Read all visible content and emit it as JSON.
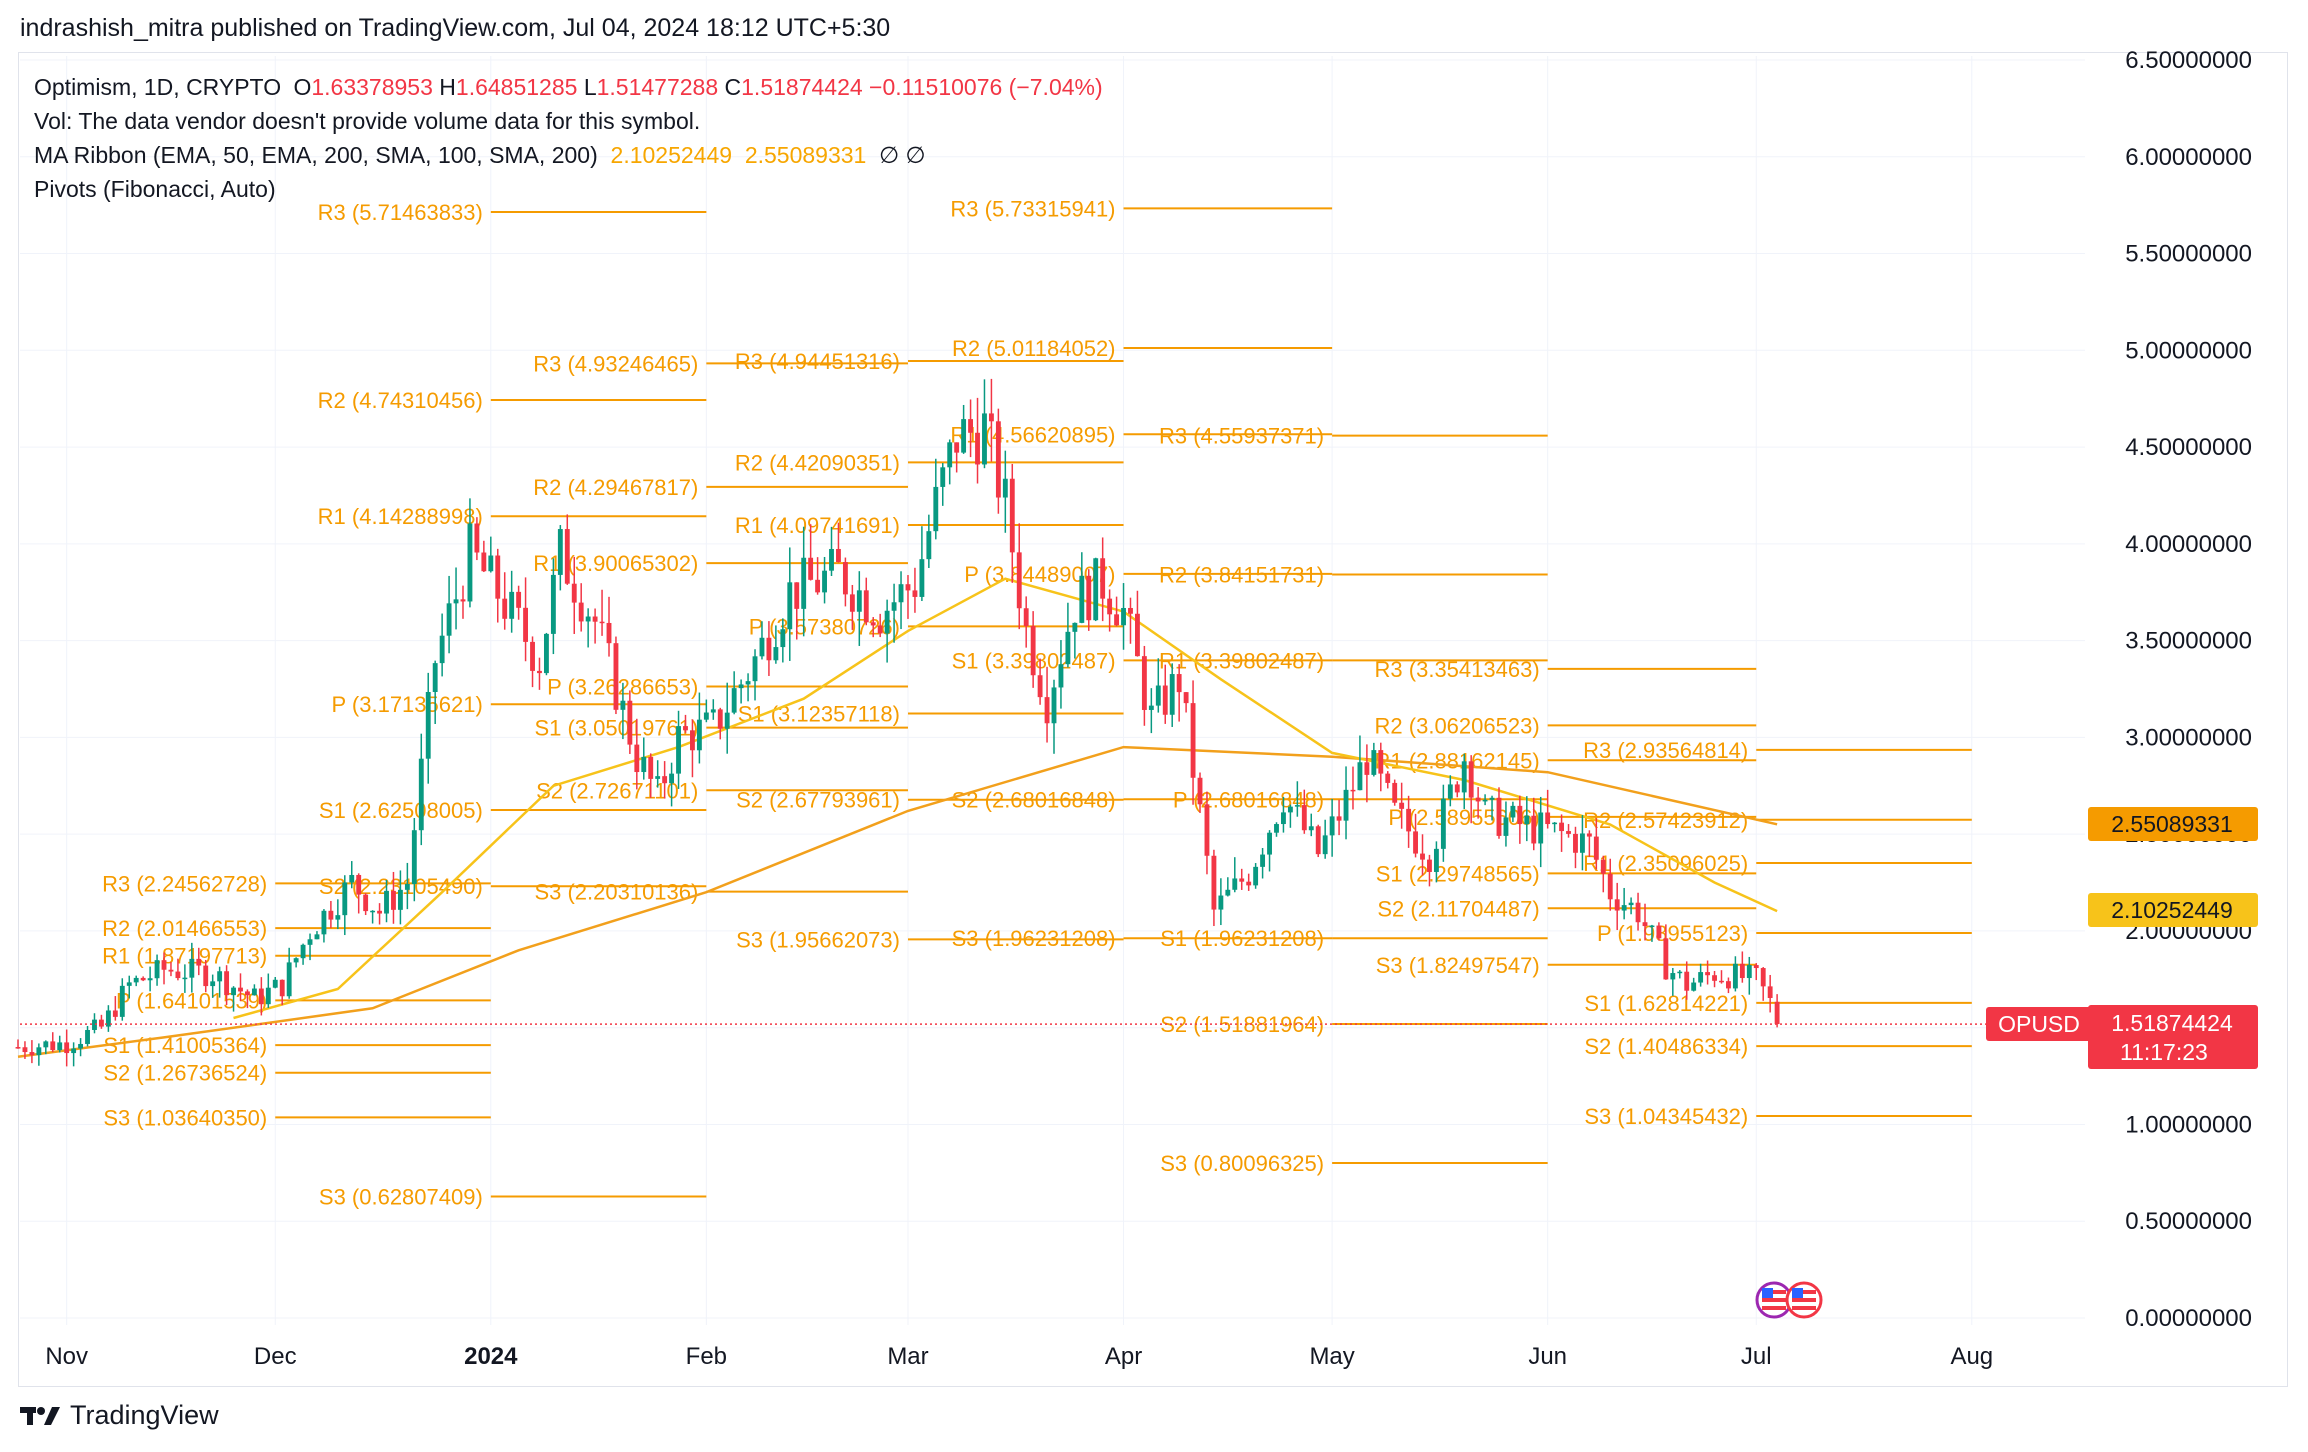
{
  "header": {
    "publisher": "indrashish_mitra published on TradingView.com, Jul 04, 2024 18:12 UTC+5:30"
  },
  "legend": {
    "symbol": "Optimism, 1D, CRYPTO",
    "o_label": "O",
    "o_value": "1.63378953",
    "h_label": "H",
    "h_value": "1.64851285",
    "l_label": "L",
    "l_value": "1.51477288",
    "c_label": "C",
    "c_value": "1.51874424",
    "change": "−0.11510076 (−7.04%)",
    "vol_text": "Vol: The data vendor doesn't provide volume data for this symbol.",
    "ma_title": "MA Ribbon (EMA, 50, EMA, 200, SMA, 100, SMA, 200)",
    "ma_value_1": "2.10252449",
    "ma_value_2": "2.55089331",
    "ma_na": "∅  ∅",
    "pivots_title": "Pivots (Fibonacci, Auto)"
  },
  "footer": {
    "brand": "TradingView",
    "logo_icon": "tradingview-logo-icon"
  },
  "badges": {
    "ma_upper": "2.55089331",
    "ma_lower": "2.10252449",
    "symbol_tag": "OPUSD",
    "price": "1.51874424",
    "countdown": "11:17:23"
  },
  "colors": {
    "up": "#089981",
    "down": "#f23645",
    "pivot": "#f59b00",
    "ma_ema50": "#f7c31a",
    "ma_ema200": "#f2a01c",
    "grid": "#f0f3fa"
  },
  "chart_data": {
    "type": "candlestick",
    "symbol": "OPUSD",
    "ylim": [
      0,
      6.5
    ],
    "y_ticks": [
      "0.00000000",
      "0.50000000",
      "1.00000000",
      "1.50000000",
      "2.00000000",
      "2.50000000",
      "3.00000000",
      "3.50000000",
      "4.00000000",
      "4.50000000",
      "5.00000000",
      "5.50000000",
      "6.00000000",
      "6.50000000"
    ],
    "x_ticks": [
      "Nov",
      "Dec",
      "2024",
      "Feb",
      "Mar",
      "Apr",
      "May",
      "Jun",
      "Jul",
      "Aug"
    ],
    "x_tick_dates": [
      "2023-11-01",
      "2023-12-01",
      "2024-01-01",
      "2024-02-01",
      "2024-03-01",
      "2024-04-01",
      "2024-05-01",
      "2024-06-01",
      "2024-07-01",
      "2024-08-01"
    ],
    "x_range": [
      "2023-10-25",
      "2024-08-18"
    ],
    "last_price": 1.51874424,
    "ohlc_anchors": [
      {
        "date": "2023-10-25",
        "close": 1.4
      },
      {
        "date": "2023-11-01",
        "close": 1.42
      },
      {
        "date": "2023-11-06",
        "close": 1.5
      },
      {
        "date": "2023-11-10",
        "close": 1.72
      },
      {
        "date": "2023-11-15",
        "close": 1.8
      },
      {
        "date": "2023-11-22",
        "close": 1.78
      },
      {
        "date": "2023-11-28",
        "close": 1.65
      },
      {
        "date": "2023-12-02",
        "close": 1.72
      },
      {
        "date": "2023-12-06",
        "close": 2.0
      },
      {
        "date": "2023-12-12",
        "close": 2.25
      },
      {
        "date": "2023-12-16",
        "close": 2.1
      },
      {
        "date": "2023-12-20",
        "close": 2.25
      },
      {
        "date": "2023-12-24",
        "close": 3.4
      },
      {
        "date": "2023-12-29",
        "close": 3.95
      },
      {
        "date": "2024-01-02",
        "close": 3.75
      },
      {
        "date": "2024-01-08",
        "close": 3.4
      },
      {
        "date": "2024-01-11",
        "close": 3.95
      },
      {
        "date": "2024-01-16",
        "close": 3.6
      },
      {
        "date": "2024-01-22",
        "close": 2.9
      },
      {
        "date": "2024-01-25",
        "close": 2.7
      },
      {
        "date": "2024-01-28",
        "close": 3.0
      },
      {
        "date": "2024-02-02",
        "close": 3.05
      },
      {
        "date": "2024-02-08",
        "close": 3.4
      },
      {
        "date": "2024-02-13",
        "close": 3.75
      },
      {
        "date": "2024-02-20",
        "close": 3.85
      },
      {
        "date": "2024-02-26",
        "close": 3.65
      },
      {
        "date": "2024-03-02",
        "close": 3.8
      },
      {
        "date": "2024-03-05",
        "close": 4.2
      },
      {
        "date": "2024-03-08",
        "close": 4.55
      },
      {
        "date": "2024-03-12",
        "close": 4.6
      },
      {
        "date": "2024-03-15",
        "close": 4.2
      },
      {
        "date": "2024-03-18",
        "close": 3.55
      },
      {
        "date": "2024-03-21",
        "close": 3.2
      },
      {
        "date": "2024-03-25",
        "close": 3.7
      },
      {
        "date": "2024-03-29",
        "close": 3.8
      },
      {
        "date": "2024-04-01",
        "close": 3.65
      },
      {
        "date": "2024-04-05",
        "close": 3.1
      },
      {
        "date": "2024-04-09",
        "close": 3.3
      },
      {
        "date": "2024-04-12",
        "close": 2.6
      },
      {
        "date": "2024-04-14",
        "close": 2.1
      },
      {
        "date": "2024-04-19",
        "close": 2.3
      },
      {
        "date": "2024-04-24",
        "close": 2.7
      },
      {
        "date": "2024-04-29",
        "close": 2.4
      },
      {
        "date": "2024-05-02",
        "close": 2.6
      },
      {
        "date": "2024-05-06",
        "close": 2.9
      },
      {
        "date": "2024-05-10",
        "close": 2.6
      },
      {
        "date": "2024-05-15",
        "close": 2.4
      },
      {
        "date": "2024-05-20",
        "close": 2.9
      },
      {
        "date": "2024-05-23",
        "close": 2.6
      },
      {
        "date": "2024-05-28",
        "close": 2.55
      },
      {
        "date": "2024-06-03",
        "close": 2.5
      },
      {
        "date": "2024-06-07",
        "close": 2.45
      },
      {
        "date": "2024-06-10",
        "close": 2.2
      },
      {
        "date": "2024-06-14",
        "close": 2.1
      },
      {
        "date": "2024-06-18",
        "close": 1.82
      },
      {
        "date": "2024-06-21",
        "close": 1.72
      },
      {
        "date": "2024-06-25",
        "close": 1.78
      },
      {
        "date": "2024-07-01",
        "close": 1.75
      },
      {
        "date": "2024-07-03",
        "close": 1.63
      },
      {
        "date": "2024-07-04",
        "close": 1.52
      }
    ],
    "ma_ema50": [
      {
        "date": "2023-11-25",
        "value": 1.55
      },
      {
        "date": "2023-12-10",
        "value": 1.7
      },
      {
        "date": "2023-12-25",
        "value": 2.2
      },
      {
        "date": "2024-01-10",
        "value": 2.75
      },
      {
        "date": "2024-01-28",
        "value": 2.95
      },
      {
        "date": "2024-02-15",
        "value": 3.2
      },
      {
        "date": "2024-03-01",
        "value": 3.55
      },
      {
        "date": "2024-03-15",
        "value": 3.82
      },
      {
        "date": "2024-04-01",
        "value": 3.65
      },
      {
        "date": "2024-04-15",
        "value": 3.3
      },
      {
        "date": "2024-05-01",
        "value": 2.92
      },
      {
        "date": "2024-05-20",
        "value": 2.78
      },
      {
        "date": "2024-06-10",
        "value": 2.55
      },
      {
        "date": "2024-06-25",
        "value": 2.25
      },
      {
        "date": "2024-07-04",
        "value": 2.10252449
      }
    ],
    "ma_ema200": [
      {
        "date": "2023-10-25",
        "value": 1.35
      },
      {
        "date": "2023-11-15",
        "value": 1.45
      },
      {
        "date": "2023-12-15",
        "value": 1.6
      },
      {
        "date": "2024-01-05",
        "value": 1.9
      },
      {
        "date": "2024-02-01",
        "value": 2.2
      },
      {
        "date": "2024-03-01",
        "value": 2.62
      },
      {
        "date": "2024-04-01",
        "value": 2.95
      },
      {
        "date": "2024-05-01",
        "value": 2.9
      },
      {
        "date": "2024-06-01",
        "value": 2.82
      },
      {
        "date": "2024-07-04",
        "value": 2.55089331
      }
    ],
    "pivots": [
      {
        "label": "R3 (2.24562728)",
        "value": 2.24562728,
        "from": "2023-12-01",
        "to": "2024-01-01"
      },
      {
        "label": "R2 (2.01466553)",
        "value": 2.01466553,
        "from": "2023-12-01",
        "to": "2024-01-01"
      },
      {
        "label": "R1 (1.87197713)",
        "value": 1.87197713,
        "from": "2023-12-01",
        "to": "2024-01-01"
      },
      {
        "label": "P (1.64101539)",
        "value": 1.64101539,
        "from": "2023-12-01",
        "to": "2024-01-01"
      },
      {
        "label": "S1 (1.41005364)",
        "value": 1.41005364,
        "from": "2023-12-01",
        "to": "2024-01-01"
      },
      {
        "label": "S2 (1.26736524)",
        "value": 1.26736524,
        "from": "2023-12-01",
        "to": "2024-01-01"
      },
      {
        "label": "S3 (1.03640350)",
        "value": 1.0364035,
        "from": "2023-12-01",
        "to": "2024-01-01"
      },
      {
        "label": "R3 (5.71463833)",
        "value": 5.71463833,
        "from": "2024-01-01",
        "to": "2024-02-01"
      },
      {
        "label": "R2 (4.74310456)",
        "value": 4.74310456,
        "from": "2024-01-01",
        "to": "2024-02-01"
      },
      {
        "label": "R1 (4.14288998)",
        "value": 4.14288998,
        "from": "2024-01-01",
        "to": "2024-02-01"
      },
      {
        "label": "P (3.17135621)",
        "value": 3.17135621,
        "from": "2024-01-01",
        "to": "2024-02-01"
      },
      {
        "label": "S1 (2.62508005)",
        "value": 2.62508005,
        "from": "2024-01-01",
        "to": "2024-02-01"
      },
      {
        "label": "S2 (2.23105490)",
        "value": 2.2310549,
        "from": "2024-01-01",
        "to": "2024-02-01"
      },
      {
        "label": "S3 (0.62807409)",
        "value": 0.62807409,
        "from": "2024-01-01",
        "to": "2024-02-01"
      },
      {
        "label": "R3 (4.93246465)",
        "value": 4.93246465,
        "from": "2024-02-01",
        "to": "2024-03-01"
      },
      {
        "label": "R2 (4.29467817)",
        "value": 4.29467817,
        "from": "2024-02-01",
        "to": "2024-03-01"
      },
      {
        "label": "R1 (3.90065302)",
        "value": 3.90065302,
        "from": "2024-02-01",
        "to": "2024-03-01"
      },
      {
        "label": "P (3.26286653)",
        "value": 3.26286653,
        "from": "2024-02-01",
        "to": "2024-03-01"
      },
      {
        "label": "S1 (3.05019761)",
        "value": 3.05019761,
        "from": "2024-02-01",
        "to": "2024-03-01"
      },
      {
        "label": "S2 (2.72671101)",
        "value": 2.72671101,
        "from": "2024-02-01",
        "to": "2024-03-01"
      },
      {
        "label": "S3 (2.20310136)",
        "value": 2.20310136,
        "from": "2024-02-01",
        "to": "2024-03-01"
      },
      {
        "label": "R3 (4.94451316)",
        "value": 4.94451316,
        "from": "2024-03-01",
        "to": "2024-04-01"
      },
      {
        "label": "R2 (4.42090351)",
        "value": 4.42090351,
        "from": "2024-03-01",
        "to": "2024-04-01"
      },
      {
        "label": "R1 (4.09741691)",
        "value": 4.09741691,
        "from": "2024-03-01",
        "to": "2024-04-01"
      },
      {
        "label": "P (3.57380726)",
        "value": 3.57380726,
        "from": "2024-03-01",
        "to": "2024-04-01"
      },
      {
        "label": "S1 (3.12357118)",
        "value": 3.12357118,
        "from": "2024-03-01",
        "to": "2024-04-01"
      },
      {
        "label": "S2 (2.67793961)",
        "value": 2.67793961,
        "from": "2024-03-01",
        "to": "2024-04-01"
      },
      {
        "label": "S3 (1.95662073)",
        "value": 1.95662073,
        "from": "2024-03-01",
        "to": "2024-04-01"
      },
      {
        "label": "R3 (5.73315941)",
        "value": 5.73315941,
        "from": "2024-04-01",
        "to": "2024-05-01"
      },
      {
        "label": "R2 (5.01184052)",
        "value": 5.01184052,
        "from": "2024-04-01",
        "to": "2024-05-01"
      },
      {
        "label": "R1 (4.56620895)",
        "value": 4.56620895,
        "from": "2024-04-01",
        "to": "2024-05-01"
      },
      {
        "label": "P (3.84489007)",
        "value": 3.84489007,
        "from": "2024-04-01",
        "to": "2024-05-01"
      },
      {
        "label": "S1 (3.39802487)",
        "value": 3.39802487,
        "from": "2024-04-01",
        "to": "2024-05-01"
      },
      {
        "label": "S2 (2.68016848)",
        "value": 2.68016848,
        "from": "2024-04-01",
        "to": "2024-05-01"
      },
      {
        "label": "S3 (1.96231208)",
        "value": 1.96231208,
        "from": "2024-04-01",
        "to": "2024-05-01"
      },
      {
        "label": "R3 (4.55937371)",
        "value": 4.55937371,
        "from": "2024-05-01",
        "to": "2024-06-01"
      },
      {
        "label": "R2 (3.84151731)",
        "value": 3.84151731,
        "from": "2024-05-01",
        "to": "2024-06-01"
      },
      {
        "label": "R1 (3.39802487)",
        "value": 3.39802487,
        "from": "2024-05-01",
        "to": "2024-06-01"
      },
      {
        "label": "P (2.68016848)",
        "value": 2.68016848,
        "from": "2024-05-01",
        "to": "2024-06-01"
      },
      {
        "label": "S1 (1.96231208)",
        "value": 1.96231208,
        "from": "2024-05-01",
        "to": "2024-06-01"
      },
      {
        "label": "S2 (1.51881964)",
        "value": 1.51881964,
        "from": "2024-05-01",
        "to": "2024-06-01"
      },
      {
        "label": "S3 (0.80096325)",
        "value": 0.80096325,
        "from": "2024-05-01",
        "to": "2024-06-01"
      },
      {
        "label": "R3 (3.35413463)",
        "value": 3.35413463,
        "from": "2024-06-01",
        "to": "2024-07-01"
      },
      {
        "label": "R2 (3.06206523)",
        "value": 3.06206523,
        "from": "2024-06-01",
        "to": "2024-07-01"
      },
      {
        "label": "R1 (2.88162145)",
        "value": 2.88162145,
        "from": "2024-06-01",
        "to": "2024-07-01"
      },
      {
        "label": "P (2.58955606)",
        "value": 2.58955606,
        "from": "2024-06-01",
        "to": "2024-07-01"
      },
      {
        "label": "S1 (2.29748565)",
        "value": 2.29748565,
        "from": "2024-06-01",
        "to": "2024-07-01"
      },
      {
        "label": "S2 (2.11704487)",
        "value": 2.11704487,
        "from": "2024-06-01",
        "to": "2024-07-01"
      },
      {
        "label": "S3 (1.82497547)",
        "value": 1.82497547,
        "from": "2024-06-01",
        "to": "2024-07-01"
      },
      {
        "label": "R3 (2.93564814)",
        "value": 2.93564814,
        "from": "2024-07-01",
        "to": "2024-08-01"
      },
      {
        "label": "R2 (2.57423912)",
        "value": 2.57423912,
        "from": "2024-07-01",
        "to": "2024-08-01"
      },
      {
        "label": "R1 (2.35096025)",
        "value": 2.35096025,
        "from": "2024-07-01",
        "to": "2024-08-01"
      },
      {
        "label": "P (1.98955123)",
        "value": 1.98955123,
        "from": "2024-07-01",
        "to": "2024-08-01"
      },
      {
        "label": "S1 (1.62814221)",
        "value": 1.62814221,
        "from": "2024-07-01",
        "to": "2024-08-01"
      },
      {
        "label": "S2 (1.40486334)",
        "value": 1.40486334,
        "from": "2024-07-01",
        "to": "2024-08-01"
      },
      {
        "label": "S3 (1.04345432)",
        "value": 1.04345432,
        "from": "2024-07-01",
        "to": "2024-08-01"
      }
    ]
  }
}
